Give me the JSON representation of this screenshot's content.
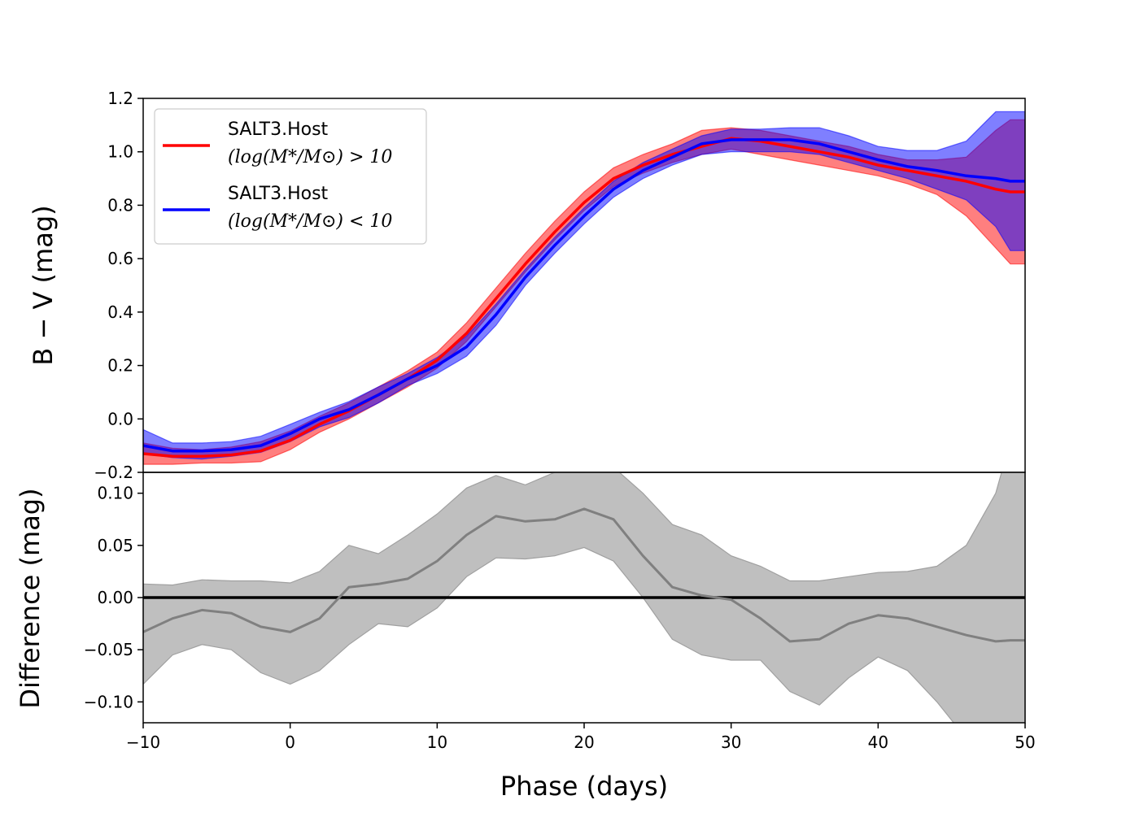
{
  "chart_data": [
    {
      "type": "line",
      "panel": "top",
      "ylabel": "B − V (mag)",
      "xlim": [
        -10,
        50
      ],
      "ylim": [
        -0.2,
        1.2
      ],
      "yticks": [
        -0.2,
        0.0,
        0.2,
        0.4,
        0.6,
        0.8,
        1.0,
        1.2
      ],
      "ytick_labels": [
        "−0.2",
        "0.0",
        "0.2",
        "0.4",
        "0.6",
        "0.8",
        "1.0",
        "1.2"
      ],
      "legend_position": "top-left",
      "series": [
        {
          "name": "SALT3.Host (log(M*/M⊙) > 10",
          "legend_line1": "SALT3.Host",
          "legend_line2": "(log(M*/M⊙) > 10",
          "color": "#ff0000",
          "fill_color": "#ff0000",
          "x": [
            -10,
            -8,
            -6,
            -4,
            -2,
            0,
            2,
            4,
            6,
            8,
            10,
            12,
            14,
            16,
            18,
            20,
            22,
            24,
            26,
            28,
            30,
            32,
            34,
            36,
            38,
            40,
            42,
            44,
            46,
            48,
            49,
            50
          ],
          "y": [
            -0.13,
            -0.14,
            -0.14,
            -0.135,
            -0.12,
            -0.08,
            -0.02,
            0.03,
            0.09,
            0.15,
            0.22,
            0.32,
            0.45,
            0.58,
            0.7,
            0.81,
            0.9,
            0.95,
            0.99,
            1.02,
            1.05,
            1.04,
            1.02,
            1.0,
            0.98,
            0.95,
            0.93,
            0.91,
            0.89,
            0.86,
            0.85,
            0.85
          ],
          "lower": [
            -0.17,
            -0.17,
            -0.165,
            -0.165,
            -0.16,
            -0.115,
            -0.05,
            0.0,
            0.06,
            0.12,
            0.19,
            0.29,
            0.42,
            0.55,
            0.67,
            0.78,
            0.87,
            0.92,
            0.96,
            0.99,
            1.01,
            0.99,
            0.97,
            0.95,
            0.93,
            0.91,
            0.88,
            0.84,
            0.76,
            0.64,
            0.58,
            0.58
          ],
          "upper": [
            -0.09,
            -0.11,
            -0.115,
            -0.105,
            -0.085,
            -0.045,
            0.01,
            0.06,
            0.12,
            0.18,
            0.25,
            0.36,
            0.49,
            0.62,
            0.74,
            0.85,
            0.94,
            0.99,
            1.03,
            1.08,
            1.09,
            1.08,
            1.06,
            1.04,
            1.02,
            0.99,
            0.97,
            0.97,
            0.98,
            1.08,
            1.12,
            1.12
          ]
        },
        {
          "name": "SALT3.Host (log(M*/M⊙) < 10",
          "legend_line1": "SALT3.Host",
          "legend_line2": "(log(M*/M⊙) < 10",
          "color": "#0000ff",
          "fill_color": "#0000ff",
          "x": [
            -10,
            -8,
            -6,
            -4,
            -2,
            0,
            2,
            4,
            6,
            8,
            10,
            12,
            14,
            16,
            18,
            20,
            22,
            24,
            26,
            28,
            30,
            32,
            34,
            36,
            38,
            40,
            42,
            44,
            46,
            48,
            49,
            50
          ],
          "y": [
            -0.1,
            -0.12,
            -0.12,
            -0.115,
            -0.1,
            -0.055,
            0.0,
            0.035,
            0.09,
            0.15,
            0.2,
            0.27,
            0.39,
            0.53,
            0.65,
            0.76,
            0.86,
            0.93,
            0.98,
            1.03,
            1.045,
            1.045,
            1.045,
            1.03,
            1.0,
            0.97,
            0.945,
            0.93,
            0.91,
            0.9,
            0.89,
            0.89
          ],
          "lower": [
            -0.13,
            -0.145,
            -0.15,
            -0.14,
            -0.125,
            -0.085,
            -0.03,
            0.005,
            0.06,
            0.125,
            0.17,
            0.235,
            0.35,
            0.5,
            0.62,
            0.73,
            0.83,
            0.9,
            0.95,
            0.99,
            1.0,
            1.0,
            1.0,
            0.99,
            0.96,
            0.93,
            0.9,
            0.86,
            0.82,
            0.72,
            0.63,
            0.63
          ],
          "upper": [
            -0.04,
            -0.09,
            -0.09,
            -0.085,
            -0.065,
            -0.02,
            0.025,
            0.065,
            0.12,
            0.17,
            0.23,
            0.31,
            0.43,
            0.56,
            0.68,
            0.79,
            0.89,
            0.96,
            1.01,
            1.06,
            1.085,
            1.085,
            1.09,
            1.09,
            1.06,
            1.02,
            1.005,
            1.005,
            1.04,
            1.15,
            1.15,
            1.15
          ]
        }
      ]
    },
    {
      "type": "line",
      "panel": "bottom",
      "xlabel": "Phase (days)",
      "ylabel": "Difference (mag)",
      "xlim": [
        -10,
        50
      ],
      "ylim": [
        -0.12,
        0.12
      ],
      "xticks": [
        -10,
        0,
        10,
        20,
        30,
        40,
        50
      ],
      "xtick_labels": [
        "−10",
        "0",
        "10",
        "20",
        "30",
        "40",
        "50"
      ],
      "yticks": [
        -0.1,
        -0.05,
        0.0,
        0.05,
        0.1
      ],
      "ytick_labels": [
        "−0.10",
        "−0.05",
        "0.00",
        "0.05",
        "0.10"
      ],
      "zero_line_color": "#000000",
      "series": [
        {
          "color": "#808080",
          "fill_color": "#bfbfbf",
          "x": [
            -10,
            -8,
            -6,
            -4,
            -2,
            0,
            2,
            4,
            6,
            8,
            10,
            12,
            14,
            16,
            18,
            20,
            22,
            24,
            26,
            28,
            30,
            32,
            34,
            36,
            38,
            40,
            42,
            44,
            46,
            48,
            49,
            50
          ],
          "y": [
            -0.033,
            -0.02,
            -0.012,
            -0.015,
            -0.028,
            -0.033,
            -0.02,
            0.01,
            0.013,
            0.018,
            0.035,
            0.06,
            0.078,
            0.073,
            0.075,
            0.085,
            0.075,
            0.04,
            0.01,
            0.002,
            -0.002,
            -0.02,
            -0.042,
            -0.04,
            -0.025,
            -0.017,
            -0.02,
            -0.028,
            -0.036,
            -0.042,
            -0.041,
            -0.041
          ],
          "lower": [
            -0.083,
            -0.055,
            -0.045,
            -0.05,
            -0.072,
            -0.083,
            -0.07,
            -0.045,
            -0.025,
            -0.028,
            -0.01,
            0.02,
            0.038,
            0.037,
            0.04,
            0.048,
            0.035,
            0.0,
            -0.04,
            -0.055,
            -0.06,
            -0.06,
            -0.09,
            -0.103,
            -0.077,
            -0.057,
            -0.07,
            -0.1,
            -0.135,
            -0.16,
            -0.17,
            -0.18
          ],
          "upper": [
            0.013,
            0.012,
            0.017,
            0.016,
            0.016,
            0.014,
            0.025,
            0.05,
            0.042,
            0.06,
            0.08,
            0.105,
            0.117,
            0.108,
            0.12,
            0.12,
            0.125,
            0.1,
            0.07,
            0.06,
            0.04,
            0.03,
            0.016,
            0.016,
            0.02,
            0.024,
            0.025,
            0.03,
            0.05,
            0.1,
            0.15,
            0.18
          ]
        }
      ]
    }
  ]
}
